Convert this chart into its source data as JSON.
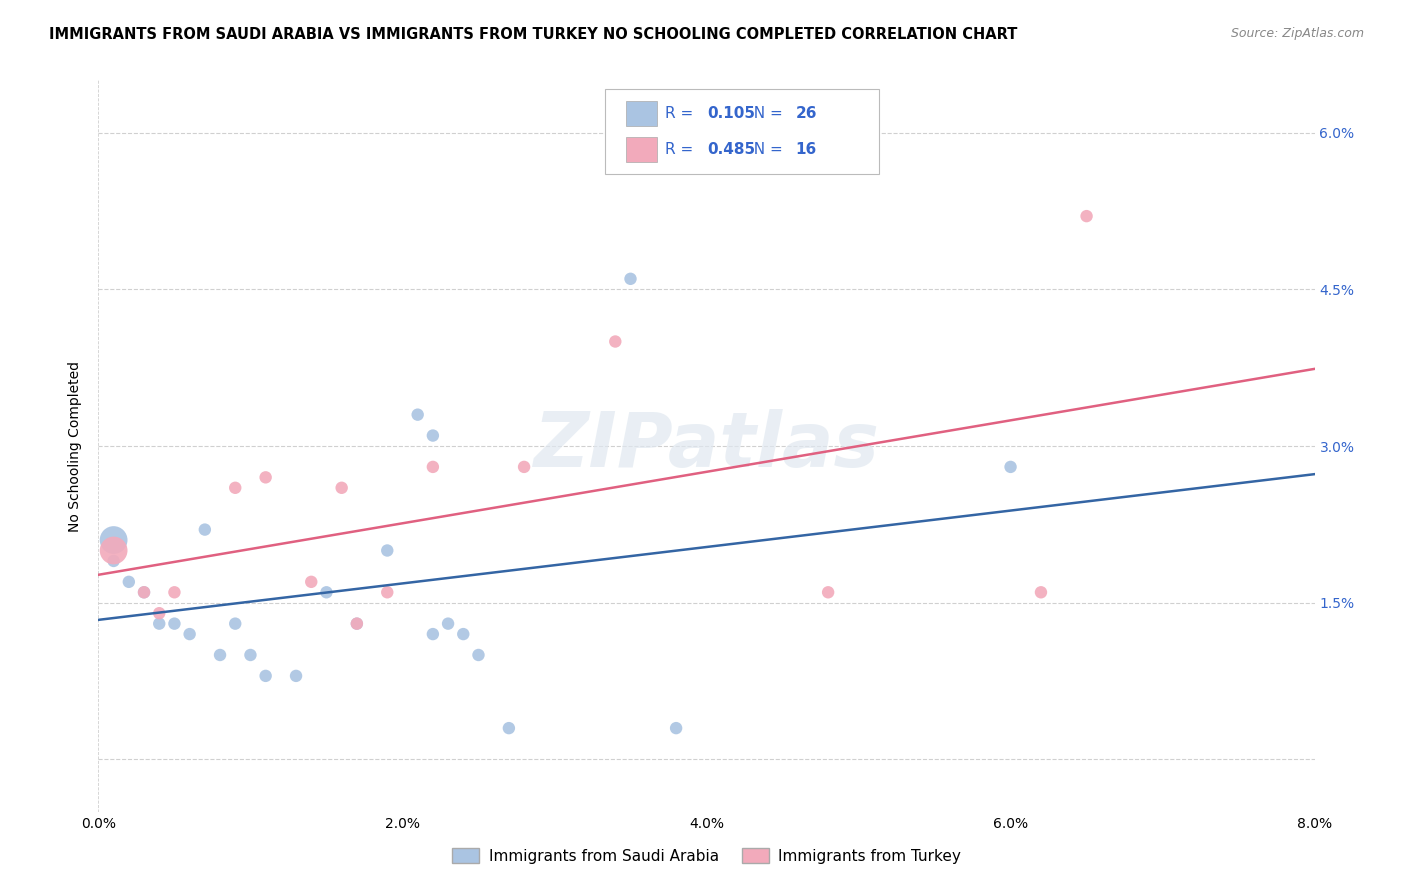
{
  "title": "IMMIGRANTS FROM SAUDI ARABIA VS IMMIGRANTS FROM TURKEY NO SCHOOLING COMPLETED CORRELATION CHART",
  "source": "Source: ZipAtlas.com",
  "ylabel": "No Schooling Completed",
  "xlim": [
    0.0,
    0.08
  ],
  "ylim": [
    -0.005,
    0.065
  ],
  "blue_color": "#aac4e2",
  "pink_color": "#f2aabb",
  "blue_line_color": "#3465a4",
  "pink_line_color": "#e06080",
  "legend_R_color": "#3465cc",
  "legend_blue_R": "0.105",
  "legend_blue_N": "26",
  "legend_pink_R": "0.485",
  "legend_pink_N": "16",
  "watermark": "ZIPatlas",
  "grid_color": "#d0d0d0",
  "saudi_x": [
    0.001,
    0.001,
    0.002,
    0.003,
    0.004,
    0.005,
    0.006,
    0.007,
    0.008,
    0.009,
    0.01,
    0.011,
    0.013,
    0.015,
    0.017,
    0.019,
    0.021,
    0.022,
    0.022,
    0.023,
    0.024,
    0.025,
    0.027,
    0.035,
    0.038,
    0.06
  ],
  "saudi_y": [
    0.021,
    0.019,
    0.017,
    0.016,
    0.013,
    0.013,
    0.012,
    0.022,
    0.01,
    0.013,
    0.01,
    0.008,
    0.008,
    0.016,
    0.013,
    0.02,
    0.033,
    0.031,
    0.012,
    0.013,
    0.012,
    0.01,
    0.003,
    0.046,
    0.003,
    0.028
  ],
  "saudi_sizes_large": [
    0
  ],
  "turkey_x": [
    0.001,
    0.003,
    0.004,
    0.005,
    0.009,
    0.011,
    0.014,
    0.016,
    0.017,
    0.019,
    0.022,
    0.028,
    0.034,
    0.048,
    0.062,
    0.065
  ],
  "turkey_y": [
    0.02,
    0.016,
    0.014,
    0.016,
    0.026,
    0.027,
    0.017,
    0.026,
    0.013,
    0.016,
    0.028,
    0.028,
    0.04,
    0.016,
    0.016,
    0.052
  ],
  "ytick_positions": [
    0.0,
    0.015,
    0.03,
    0.045,
    0.06
  ],
  "ytick_labels_right": [
    "",
    "1.5%",
    "3.0%",
    "4.5%",
    "6.0%"
  ],
  "xtick_positions": [
    0.0,
    0.01,
    0.02,
    0.03,
    0.04,
    0.05,
    0.06,
    0.07,
    0.08
  ],
  "xtick_labels": [
    "0.0%",
    "",
    "2.0%",
    "",
    "4.0%",
    "",
    "6.0%",
    "",
    "8.0%"
  ]
}
